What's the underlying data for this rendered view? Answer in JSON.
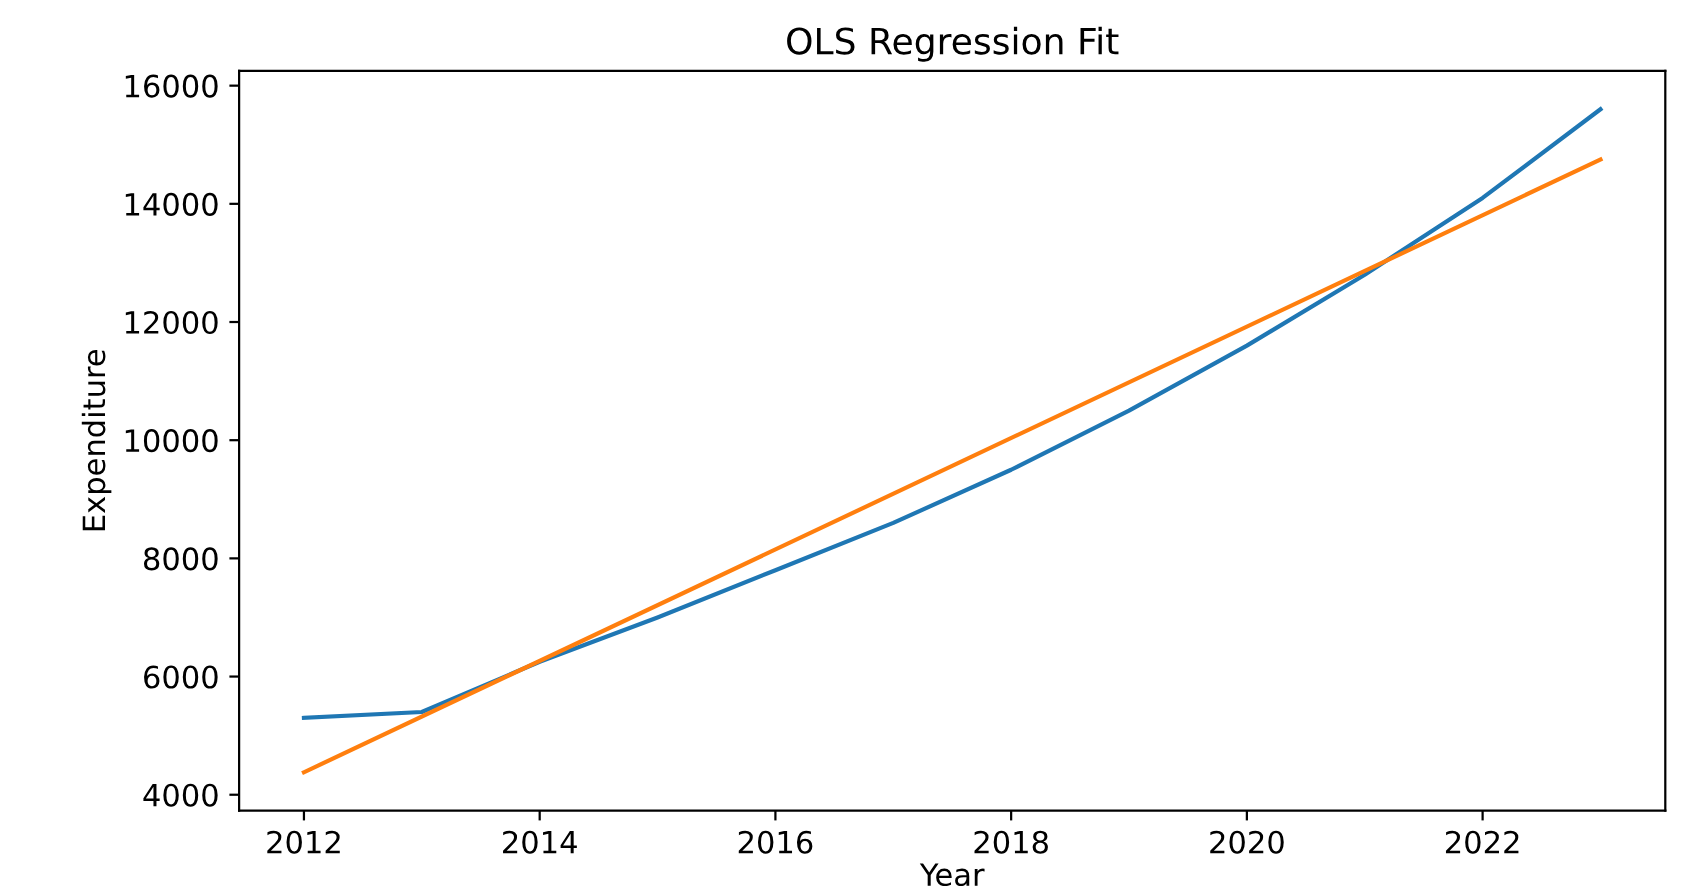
{
  "chart_data": {
    "type": "line",
    "title": "OLS Regression Fit",
    "xlabel": "Year",
    "ylabel": "Expenditure",
    "x": [
      2012,
      2013,
      2014,
      2015,
      2016,
      2017,
      2018,
      2019,
      2020,
      2021,
      2022,
      2023
    ],
    "series": [
      {
        "color": "#1f77b4",
        "values": [
          5300,
          5400,
          6250,
          7000,
          7800,
          8600,
          9500,
          10500,
          11600,
          12800,
          14100,
          15600
        ]
      },
      {
        "color": "#ff7f0e",
        "x": [
          2012,
          2023
        ],
        "values": [
          4380,
          14750
        ]
      }
    ],
    "xlim": [
      2011.45,
      2023.55
    ],
    "ylim": [
      3730,
      16250
    ],
    "xticks": [
      2012,
      2014,
      2016,
      2018,
      2020,
      2022
    ],
    "yticks": [
      4000,
      6000,
      8000,
      10000,
      12000,
      14000,
      16000
    ],
    "grid": false,
    "legend": false
  }
}
